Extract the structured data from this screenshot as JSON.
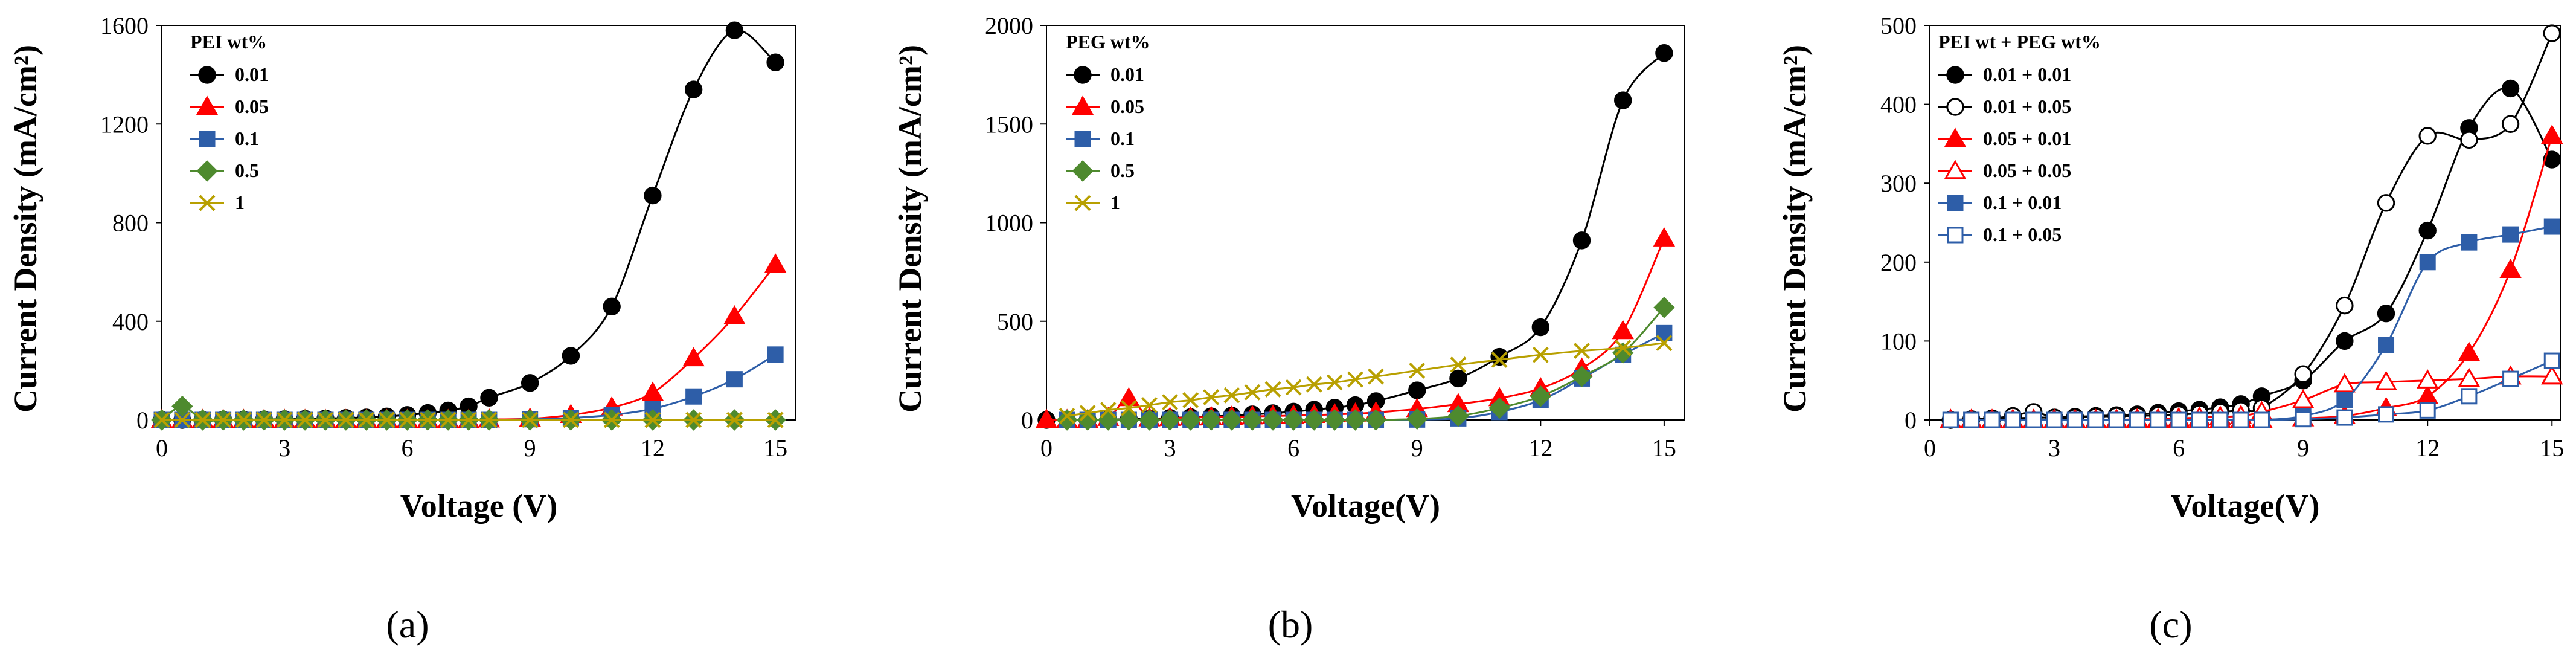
{
  "chart_data": [
    {
      "type": "line",
      "panel_label": "(a)",
      "title": "",
      "xlabel": "Voltage (V)",
      "ylabel": "Current Density (mA/cm²)",
      "xlim": [
        0,
        15.5
      ],
      "ylim": [
        0,
        1600
      ],
      "xticks": [
        "0",
        "3",
        "6",
        "9",
        "12",
        "15"
      ],
      "yticks": [
        "0",
        "400",
        "800",
        "1200",
        "1600"
      ],
      "legend_title": "PEI wt%",
      "series": [
        {
          "name": "0.01",
          "color": "#000000",
          "marker": "circle",
          "filled": true,
          "x": [
            0,
            0.5,
            1,
            1.5,
            2,
            2.5,
            3,
            3.5,
            4,
            4.5,
            5,
            5.5,
            6,
            6.5,
            7,
            7.5,
            8,
            9,
            10,
            11,
            12,
            13,
            14,
            15
          ],
          "y": [
            0,
            0,
            0,
            1,
            1,
            2,
            3,
            4,
            6,
            8,
            10,
            14,
            20,
            28,
            38,
            55,
            90,
            150,
            260,
            460,
            910,
            1340,
            1580,
            1450
          ]
        },
        {
          "name": "0.05",
          "color": "#ff0000",
          "marker": "triangle",
          "filled": true,
          "x": [
            0,
            0.5,
            1,
            1.5,
            2,
            2.5,
            3,
            3.5,
            4,
            4.5,
            5,
            5.5,
            6,
            6.5,
            7,
            7.5,
            8,
            9,
            10,
            11,
            12,
            13,
            14,
            15
          ],
          "y": [
            0,
            0,
            0,
            0,
            0,
            0,
            0,
            0,
            0,
            0,
            0,
            0,
            0,
            0,
            0,
            0,
            2,
            5,
            20,
            50,
            110,
            250,
            420,
            630
          ]
        },
        {
          "name": "0.1",
          "color": "#2e5ea8",
          "marker": "square",
          "filled": true,
          "x": [
            0,
            0.5,
            1,
            1.5,
            2,
            2.5,
            3,
            3.5,
            4,
            4.5,
            5,
            5.5,
            6,
            6.5,
            7,
            7.5,
            8,
            9,
            10,
            11,
            12,
            13,
            14,
            15
          ],
          "y": [
            0,
            0,
            0,
            0,
            0,
            0,
            0,
            0,
            0,
            0,
            0,
            0,
            0,
            0,
            0,
            0,
            0,
            3,
            8,
            20,
            45,
            95,
            165,
            265
          ]
        },
        {
          "name": "0.5",
          "color": "#4e8a2e",
          "marker": "diamond",
          "filled": true,
          "x": [
            0,
            0.5,
            1,
            1.5,
            2,
            2.5,
            3,
            3.5,
            4,
            4.5,
            5,
            5.5,
            6,
            6.5,
            7,
            7.5,
            8,
            9,
            10,
            11,
            12,
            13,
            14,
            15
          ],
          "y": [
            0,
            55,
            0,
            0,
            0,
            0,
            0,
            0,
            0,
            0,
            0,
            0,
            0,
            0,
            0,
            0,
            0,
            0,
            0,
            0,
            0,
            0,
            0,
            0
          ]
        },
        {
          "name": "1",
          "color": "#b8a000",
          "marker": "x",
          "filled": false,
          "x": [
            0,
            0.5,
            1,
            1.5,
            2,
            2.5,
            3,
            3.5,
            4,
            4.5,
            5,
            5.5,
            6,
            6.5,
            7,
            7.5,
            8,
            9,
            10,
            11,
            12,
            13,
            14,
            15
          ],
          "y": [
            0,
            0,
            0,
            0,
            0,
            0,
            0,
            0,
            0,
            0,
            0,
            0,
            0,
            0,
            0,
            0,
            0,
            0,
            0,
            0,
            0,
            0,
            0,
            0
          ]
        }
      ]
    },
    {
      "type": "line",
      "panel_label": "(b)",
      "title": "",
      "xlabel": "Voltage(V)",
      "ylabel": "Current Density (mA/cm²)",
      "xlim": [
        0,
        15.5
      ],
      "ylim": [
        0,
        2000
      ],
      "xticks": [
        "0",
        "3",
        "6",
        "9",
        "12",
        "15"
      ],
      "yticks": [
        "0",
        "500",
        "1000",
        "1500",
        "2000"
      ],
      "legend_title": "PEG wt%",
      "series": [
        {
          "name": "0.01",
          "color": "#000000",
          "marker": "circle",
          "filled": true,
          "x": [
            0,
            0.5,
            1,
            1.5,
            2,
            2.5,
            3,
            3.5,
            4,
            4.5,
            5,
            5.5,
            6,
            6.5,
            7,
            7.5,
            8,
            9,
            10,
            11,
            12,
            13,
            14,
            15
          ],
          "y": [
            0,
            0,
            0,
            2,
            4,
            6,
            10,
            14,
            18,
            22,
            28,
            34,
            42,
            52,
            62,
            75,
            95,
            150,
            210,
            320,
            470,
            910,
            1620,
            1860
          ]
        },
        {
          "name": "0.05",
          "color": "#ff0000",
          "marker": "triangle",
          "filled": true,
          "x": [
            0,
            0.5,
            1,
            1.5,
            2,
            2.5,
            3,
            3.5,
            4,
            4.5,
            5,
            5.5,
            6,
            6.5,
            7,
            7.5,
            8,
            9,
            10,
            11,
            12,
            13,
            14,
            15
          ],
          "y": [
            0,
            0,
            0,
            10,
            110,
            8,
            10,
            12,
            14,
            16,
            18,
            20,
            22,
            25,
            28,
            32,
            38,
            55,
            80,
            110,
            160,
            260,
            450,
            920
          ]
        },
        {
          "name": "0.1",
          "color": "#2e5ea8",
          "marker": "square",
          "filled": true,
          "x": [
            0.5,
            1,
            1.5,
            2,
            2.5,
            3,
            3.5,
            4,
            4.5,
            5,
            5.5,
            6,
            6.5,
            7,
            7.5,
            8,
            9,
            10,
            11,
            12,
            13,
            14,
            15
          ],
          "y": [
            0,
            0,
            0,
            0,
            0,
            0,
            0,
            0,
            0,
            0,
            0,
            0,
            0,
            0,
            0,
            0,
            2,
            8,
            40,
            100,
            210,
            330,
            440
          ]
        },
        {
          "name": "0.5",
          "color": "#4e8a2e",
          "marker": "diamond",
          "filled": true,
          "x": [
            0.5,
            1,
            1.5,
            2,
            2.5,
            3,
            3.5,
            4,
            4.5,
            5,
            5.5,
            6,
            6.5,
            7,
            7.5,
            8,
            9,
            10,
            11,
            12,
            13,
            14,
            15
          ],
          "y": [
            0,
            0,
            0,
            0,
            0,
            0,
            0,
            0,
            0,
            0,
            0,
            0,
            0,
            0,
            0,
            0,
            5,
            20,
            60,
            120,
            220,
            340,
            570
          ]
        },
        {
          "name": "1",
          "color": "#b8a000",
          "marker": "x",
          "filled": false,
          "x": [
            0.5,
            1,
            1.5,
            2,
            2.5,
            3,
            3.5,
            4,
            4.5,
            5,
            5.5,
            6,
            6.5,
            7,
            7.5,
            8,
            9,
            10,
            11,
            12,
            13,
            14,
            15
          ],
          "y": [
            20,
            35,
            50,
            60,
            75,
            90,
            100,
            115,
            125,
            140,
            155,
            165,
            180,
            190,
            205,
            220,
            250,
            280,
            305,
            330,
            350,
            365,
            390
          ]
        }
      ]
    },
    {
      "type": "line",
      "panel_label": "(c)",
      "title": "",
      "xlabel": "Voltage(V)",
      "ylabel": "Current Density (mA/cm²)",
      "xlim": [
        0,
        15.2
      ],
      "ylim": [
        0,
        500
      ],
      "xticks": [
        "0",
        "3",
        "6",
        "9",
        "12",
        "15"
      ],
      "yticks": [
        "0",
        "100",
        "200",
        "300",
        "400",
        "500"
      ],
      "legend_title": "PEI wt + PEG wt%",
      "series": [
        {
          "name": "0.01 + 0.01",
          "color": "#000000",
          "marker": "circle",
          "filled": true,
          "x": [
            0.5,
            1,
            1.5,
            2,
            2.5,
            3,
            3.5,
            4,
            4.5,
            5,
            5.5,
            6,
            6.5,
            7,
            7.5,
            8,
            9,
            10,
            11,
            12,
            13,
            14,
            15
          ],
          "y": [
            0,
            1,
            1,
            2,
            3,
            3,
            4,
            5,
            6,
            7,
            9,
            11,
            13,
            16,
            20,
            30,
            50,
            100,
            135,
            240,
            370,
            420,
            330
          ]
        },
        {
          "name": "0.01 + 0.05",
          "color": "#000000",
          "marker": "circle",
          "filled": false,
          "x": [
            0.5,
            1,
            1.5,
            2,
            2.5,
            3,
            3.5,
            4,
            4.5,
            5,
            5.5,
            6,
            6.5,
            7,
            7.5,
            8,
            9,
            10,
            11,
            12,
            13,
            14,
            15
          ],
          "y": [
            0,
            1,
            2,
            5,
            10,
            3,
            3,
            4,
            5,
            5,
            6,
            7,
            8,
            10,
            12,
            15,
            58,
            145,
            275,
            360,
            355,
            375,
            490
          ]
        },
        {
          "name": "0.05 + 0.01",
          "color": "#ff0000",
          "marker": "triangle",
          "filled": true,
          "x": [
            0.5,
            1,
            1.5,
            2,
            2.5,
            3,
            3.5,
            4,
            4.5,
            5,
            5.5,
            6,
            6.5,
            7,
            7.5,
            8,
            9,
            10,
            11,
            12,
            13,
            14,
            15
          ],
          "y": [
            0,
            0,
            0,
            0,
            0,
            0,
            0,
            0,
            0,
            0,
            0,
            0,
            0,
            0,
            0,
            0,
            2,
            5,
            15,
            30,
            85,
            190,
            360
          ]
        },
        {
          "name": "0.05 + 0.05",
          "color": "#ff0000",
          "marker": "triangle",
          "filled": false,
          "x": [
            0.5,
            1,
            1.5,
            2,
            2.5,
            3,
            3.5,
            4,
            4.5,
            5,
            5.5,
            6,
            6.5,
            7,
            7.5,
            8,
            9,
            10,
            11,
            12,
            13,
            14,
            15
          ],
          "y": [
            0,
            0,
            0,
            0,
            0,
            0,
            0,
            0,
            0,
            1,
            1,
            2,
            3,
            4,
            5,
            10,
            25,
            45,
            48,
            50,
            52,
            55,
            55
          ]
        },
        {
          "name": "0.1 + 0.01",
          "color": "#2e5ea8",
          "marker": "square",
          "filled": true,
          "x": [
            0.5,
            1,
            1.5,
            2,
            2.5,
            3,
            3.5,
            4,
            4.5,
            5,
            5.5,
            6,
            6.5,
            7,
            7.5,
            8,
            9,
            10,
            11,
            12,
            13,
            14,
            15
          ],
          "y": [
            0,
            0,
            0,
            0,
            0,
            0,
            0,
            0,
            0,
            0,
            0,
            0,
            0,
            0,
            0,
            0,
            5,
            25,
            95,
            200,
            225,
            235,
            245
          ]
        },
        {
          "name": "0.1 + 0.05",
          "color": "#2e5ea8",
          "marker": "square",
          "filled": false,
          "x": [
            0.5,
            1,
            1.5,
            2,
            2.5,
            3,
            3.5,
            4,
            4.5,
            5,
            5.5,
            6,
            6.5,
            7,
            7.5,
            8,
            9,
            10,
            11,
            12,
            13,
            14,
            15
          ],
          "y": [
            0,
            0,
            0,
            0,
            0,
            0,
            0,
            0,
            0,
            0,
            0,
            0,
            0,
            0,
            0,
            0,
            1,
            3,
            7,
            12,
            30,
            52,
            75
          ]
        }
      ]
    }
  ]
}
